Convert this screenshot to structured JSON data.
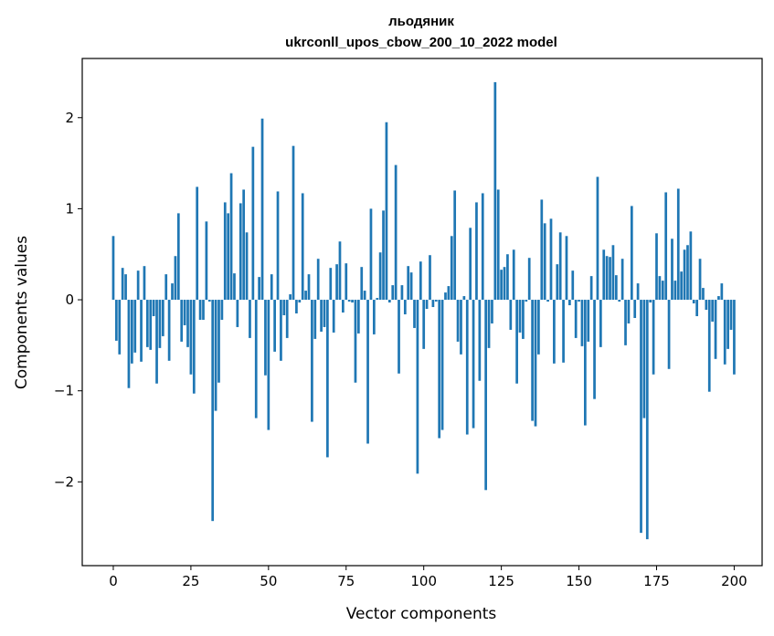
{
  "chart_data": {
    "type": "bar",
    "title": "льодяник",
    "subtitle": "ukrconll_upos_cbow_200_10_2022 model",
    "xlabel": "Vector components",
    "ylabel": "Components values",
    "xlim": [
      -10,
      209
    ],
    "ylim": [
      -2.92,
      2.65
    ],
    "xticks": [
      0,
      25,
      50,
      75,
      100,
      125,
      150,
      175,
      200
    ],
    "yticks": [
      -2,
      -1,
      0,
      1,
      2
    ],
    "ytick_labels": [
      "−2",
      "−1",
      "0",
      "1",
      "2"
    ],
    "color": "#1f77b4",
    "grid": false,
    "legend": "none",
    "values": [
      0.7,
      -0.45,
      -0.6,
      0.35,
      0.28,
      -0.97,
      -0.7,
      -0.58,
      0.32,
      -0.68,
      0.37,
      -0.52,
      -0.55,
      -0.18,
      -0.92,
      -0.53,
      -0.4,
      0.28,
      -0.67,
      0.18,
      0.48,
      0.95,
      -0.46,
      -0.28,
      -0.52,
      -0.82,
      -1.03,
      1.24,
      -0.22,
      -0.22,
      0.86,
      -0.02,
      -2.43,
      -1.22,
      -0.91,
      -0.22,
      1.07,
      0.95,
      1.39,
      0.29,
      -0.3,
      1.06,
      1.21,
      0.74,
      -0.42,
      1.68,
      -1.3,
      0.25,
      1.99,
      -0.83,
      -1.43,
      0.28,
      -0.57,
      1.19,
      -0.67,
      -0.17,
      -0.42,
      0.06,
      1.69,
      -0.15,
      -0.03,
      1.17,
      0.1,
      0.28,
      -1.34,
      -0.43,
      0.45,
      -0.35,
      -0.3,
      -1.73,
      0.35,
      -0.36,
      0.39,
      0.64,
      -0.14,
      0.4,
      -0.02,
      -0.03,
      -0.91,
      -0.37,
      0.36,
      0.1,
      -1.58,
      1.0,
      -0.38,
      0.02,
      0.52,
      0.98,
      1.95,
      -0.03,
      0.16,
      1.48,
      -0.81,
      0.16,
      -0.16,
      0.37,
      0.3,
      -0.31,
      -1.91,
      0.42,
      -0.54,
      -0.1,
      0.49,
      -0.08,
      -0.02,
      -1.52,
      -1.43,
      0.08,
      0.15,
      0.7,
      1.2,
      -0.46,
      -0.6,
      0.04,
      -1.48,
      0.79,
      -1.41,
      1.07,
      -0.89,
      1.17,
      -2.09,
      -0.53,
      -0.26,
      2.39,
      1.21,
      0.33,
      0.36,
      0.5,
      -0.33,
      0.55,
      -0.92,
      -0.36,
      -0.43,
      -0.02,
      0.46,
      -1.33,
      -1.39,
      -0.6,
      1.1,
      0.84,
      -0.02,
      0.89,
      -0.7,
      0.39,
      0.74,
      -0.69,
      0.7,
      -0.06,
      0.32,
      -0.42,
      -0.02,
      -0.51,
      -1.38,
      -0.46,
      0.26,
      -1.09,
      1.35,
      -0.52,
      0.55,
      0.48,
      0.47,
      0.6,
      0.27,
      -0.02,
      0.45,
      -0.5,
      -0.26,
      1.03,
      -0.2,
      0.18,
      -2.56,
      -1.3,
      -2.63,
      -0.03,
      -0.82,
      0.73,
      0.26,
      0.21,
      1.18,
      -0.76,
      0.67,
      0.21,
      1.22,
      0.31,
      0.55,
      0.6,
      0.75,
      -0.04,
      -0.18,
      0.45,
      0.13,
      -0.11,
      -1.01,
      -0.24,
      -0.65,
      0.04,
      0.18,
      -0.71,
      -0.54,
      -0.33,
      -0.82
    ]
  }
}
